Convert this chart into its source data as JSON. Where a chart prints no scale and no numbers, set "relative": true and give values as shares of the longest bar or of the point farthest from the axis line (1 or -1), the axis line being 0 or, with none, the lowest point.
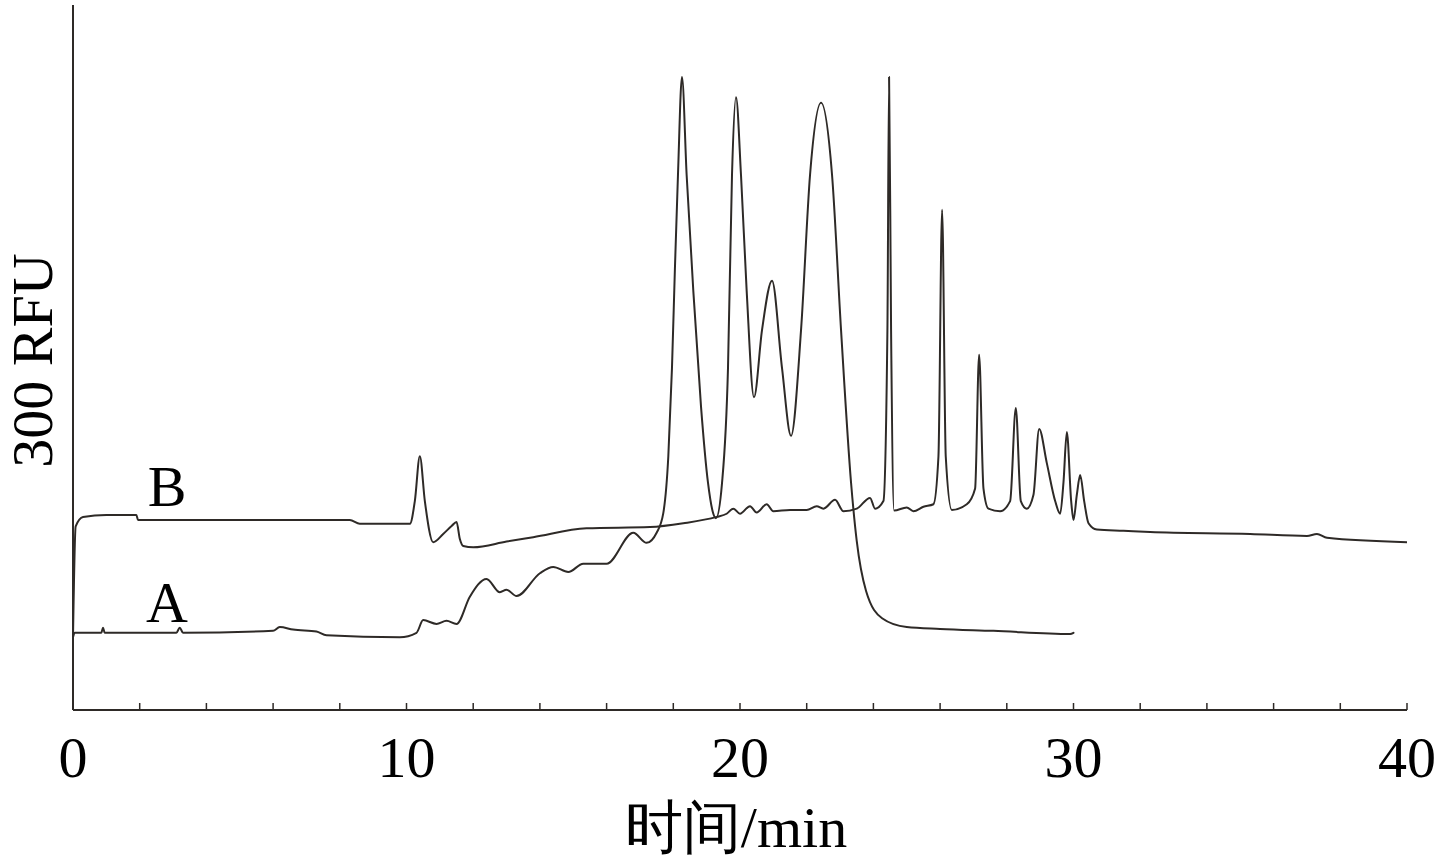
{
  "chart_data": {
    "type": "line",
    "relative": true,
    "xlabel": "时间/min",
    "ylabel": "300 RFU",
    "xlim": [
      0,
      40
    ],
    "xticks": [
      0,
      {
        "value": 2,
        "label": null
      },
      {
        "value": 4,
        "label": null
      },
      {
        "value": 6,
        "label": null
      },
      {
        "value": 8,
        "label": null
      },
      10,
      {
        "value": 12,
        "label": null
      },
      {
        "value": 14,
        "label": null
      },
      {
        "value": 16,
        "label": null
      },
      {
        "value": 18,
        "label": null
      },
      20,
      {
        "value": 22,
        "label": null
      },
      {
        "value": 24,
        "label": null
      },
      {
        "value": 26,
        "label": null
      },
      {
        "value": 28,
        "label": null
      },
      30,
      {
        "value": 32,
        "label": null
      },
      {
        "value": 34,
        "label": null
      },
      {
        "value": 36,
        "label": null
      },
      {
        "value": 38,
        "label": null
      },
      40
    ],
    "tick_labels": "x",
    "marker": "none",
    "line_style": "solid",
    "series": [
      {
        "name": "A",
        "color": "#2e2a27",
        "x": [
          0,
          0.05,
          0.85,
          0.9,
          0.95,
          3.1,
          3.2,
          3.3,
          6.0,
          6.2,
          6.6,
          7.3,
          7.6,
          9.8,
          10.3,
          10.5,
          10.9,
          11.2,
          11.5,
          11.9,
          12.4,
          12.8,
          13.0,
          13.3,
          14.0,
          14.4,
          14.85,
          15.3,
          16.0,
          16.8,
          17.2,
          17.5,
          17.7,
          17.85,
          17.96,
          18.05,
          18.14,
          18.26,
          18.4,
          18.6,
          18.83,
          19.04,
          19.2,
          19.28,
          19.46,
          19.64,
          19.76,
          19.88,
          20.03,
          20.2,
          20.42,
          20.66,
          20.96,
          21.26,
          21.53,
          21.83,
          22.1,
          22.43,
          22.76,
          23.03,
          23.33,
          23.5,
          23.78,
          24.26,
          25.0,
          26.0,
          27.6,
          29.9,
          30.0
        ],
        "values": [
          0.115,
          0.122,
          0.122,
          0.13,
          0.122,
          0.122,
          0.13,
          0.122,
          0.125,
          0.131,
          0.127,
          0.124,
          0.118,
          0.115,
          0.122,
          0.142,
          0.136,
          0.141,
          0.136,
          0.179,
          0.207,
          0.186,
          0.19,
          0.18,
          0.216,
          0.226,
          0.218,
          0.231,
          0.231,
          0.28,
          0.264,
          0.28,
          0.311,
          0.4,
          0.54,
          0.7,
          0.845,
          1.0,
          0.845,
          0.662,
          0.48,
          0.359,
          0.31,
          0.303,
          0.358,
          0.54,
          0.845,
          0.968,
          0.845,
          0.662,
          0.494,
          0.6,
          0.678,
          0.54,
          0.433,
          0.6,
          0.845,
          0.959,
          0.845,
          0.6,
          0.359,
          0.267,
          0.188,
          0.145,
          0.131,
          0.128,
          0.125,
          0.12,
          0.122
        ]
      },
      {
        "name": "B",
        "color": "#2e2a27",
        "x": [
          0,
          0.08,
          0.3,
          1.0,
          1.9,
          1.95,
          3.0,
          8.3,
          8.6,
          10.1,
          10.25,
          10.4,
          10.55,
          10.8,
          11.1,
          11.36,
          11.5,
          11.6,
          11.7,
          12.0,
          13.0,
          13.8,
          15.4,
          17.3,
          18.3,
          19.3,
          19.6,
          19.8,
          20.0,
          20.3,
          20.5,
          20.8,
          21.0,
          21.5,
          22.0,
          22.3,
          22.5,
          22.85,
          23.1,
          23.5,
          23.9,
          24.05,
          24.3,
          24.42,
          24.47,
          24.53,
          24.62,
          25.0,
          25.2,
          25.5,
          25.8,
          25.95,
          26.06,
          26.17,
          26.35,
          26.8,
          27.05,
          27.17,
          27.3,
          27.45,
          27.8,
          28.1,
          28.27,
          28.42,
          28.6,
          28.8,
          28.97,
          29.2,
          29.45,
          29.6,
          29.7,
          29.8,
          29.93,
          30.0,
          30.1,
          30.2,
          30.32,
          30.45,
          30.7,
          31.5,
          32.3,
          35.3,
          37.0,
          37.3,
          37.6,
          40
        ],
        "values": [
          0.115,
          0.29,
          0.305,
          0.308,
          0.308,
          0.3,
          0.3,
          0.3,
          0.294,
          0.294,
          0.33,
          0.401,
          0.33,
          0.265,
          0.278,
          0.291,
          0.297,
          0.27,
          0.259,
          0.257,
          0.266,
          0.273,
          0.287,
          0.289,
          0.295,
          0.305,
          0.31,
          0.318,
          0.31,
          0.322,
          0.312,
          0.325,
          0.314,
          0.316,
          0.316,
          0.322,
          0.318,
          0.332,
          0.314,
          0.318,
          0.335,
          0.318,
          0.33,
          0.6,
          1.0,
          0.6,
          0.315,
          0.32,
          0.314,
          0.321,
          0.325,
          0.4,
          0.79,
          0.4,
          0.316,
          0.325,
          0.35,
          0.561,
          0.35,
          0.318,
          0.314,
          0.33,
          0.477,
          0.33,
          0.318,
          0.34,
          0.444,
          0.39,
          0.33,
          0.31,
          0.36,
          0.439,
          0.33,
          0.3,
          0.34,
          0.371,
          0.33,
          0.295,
          0.285,
          0.283,
          0.281,
          0.278,
          0.275,
          0.278,
          0.272,
          0.265
        ]
      }
    ]
  }
}
